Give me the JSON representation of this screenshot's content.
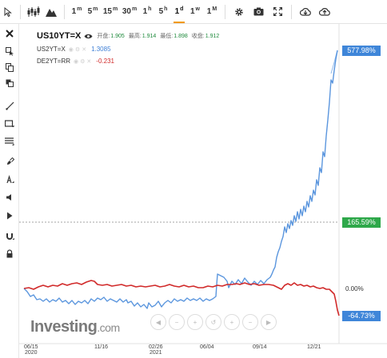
{
  "toolbar": {
    "timeframes": [
      {
        "label": "1",
        "unit": "m"
      },
      {
        "label": "5",
        "unit": "m"
      },
      {
        "label": "15",
        "unit": "m"
      },
      {
        "label": "30",
        "unit": "m"
      },
      {
        "label": "1",
        "unit": "h"
      },
      {
        "label": "5",
        "unit": "h"
      },
      {
        "label": "1",
        "unit": "d"
      },
      {
        "label": "1",
        "unit": "w"
      },
      {
        "label": "1",
        "unit": "M"
      }
    ],
    "active_timeframe": "1d"
  },
  "legend": {
    "symbol": "US10YT=X",
    "open_label": "开盘:",
    "open_value": "1.905",
    "high_label": "最高:",
    "high_value": "1.914",
    "low_label": "最低:",
    "low_value": "1.898",
    "close_label": "收盘:",
    "close_value": "1.912",
    "compare": [
      {
        "symbol": "US2YT=X",
        "value": "1.3085",
        "color": "#3e7fd6"
      },
      {
        "symbol": "DE2YT=RR",
        "value": "-0.231",
        "color": "#d12a2a"
      }
    ]
  },
  "price_scale": {
    "us10_tag": "577.98%",
    "dotted_tag": "165.59%",
    "zero_label": "0.00%",
    "red_tag": "-64.73%"
  },
  "x_axis": {
    "labels": [
      {
        "line1": "06/15",
        "line2": "2020"
      },
      {
        "line1": "11/16",
        "line2": ""
      },
      {
        "line1": "02/26",
        "line2": "2021"
      },
      {
        "line1": "06/04",
        "line2": ""
      },
      {
        "line1": "09/14",
        "line2": ""
      },
      {
        "line1": "12/21",
        "line2": ""
      }
    ]
  },
  "watermark": {
    "brand": "Investing",
    "suffix": ".com"
  },
  "colors": {
    "us10": "#4a8ee0",
    "us2": "#3e7fd6",
    "de2": "#d12a2a",
    "accent": "#f29900",
    "tag_blue": "#3f86d9",
    "tag_green": "#2ea84a",
    "tag_red_label": "#3f86d9"
  }
}
